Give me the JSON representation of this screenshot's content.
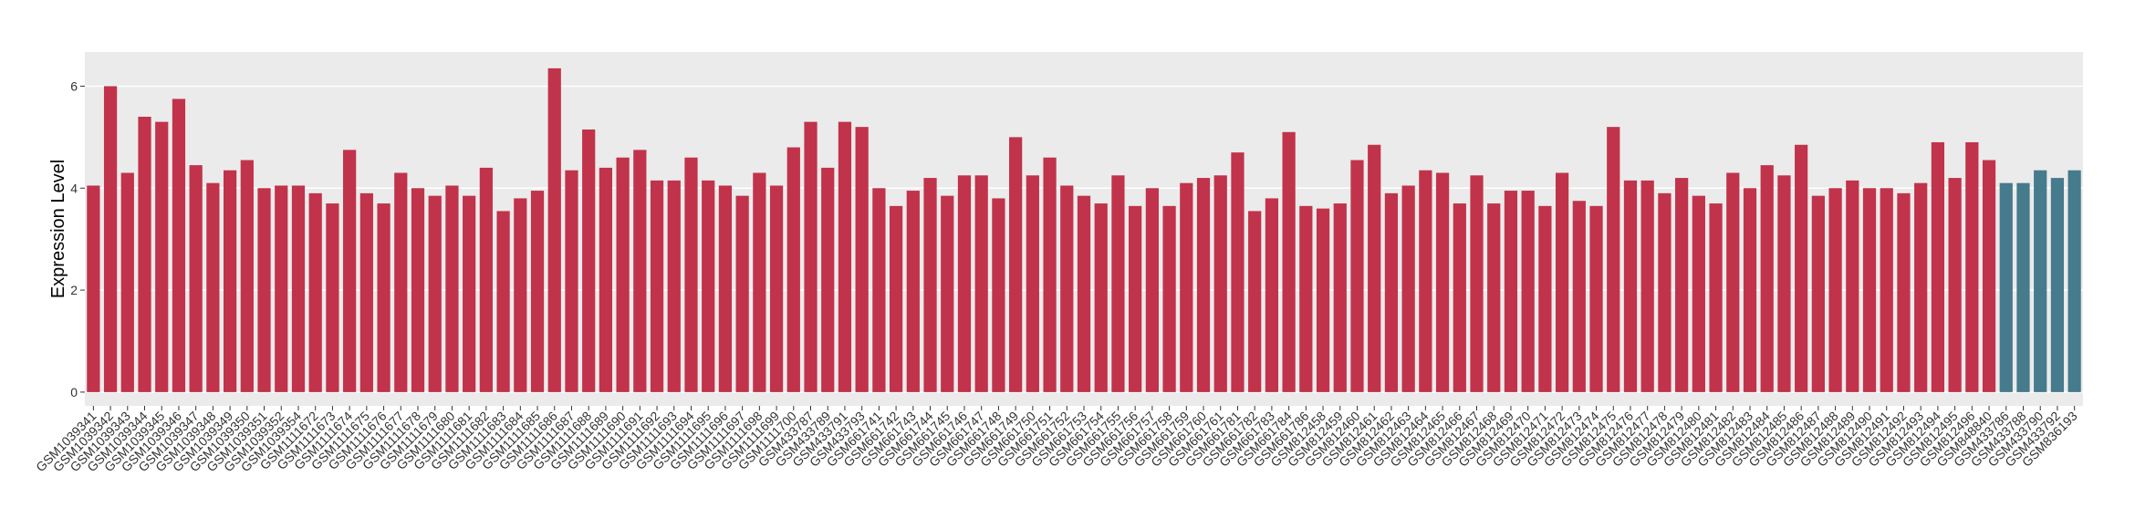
{
  "chart_data": {
    "type": "bar",
    "y_label": "Expression Level",
    "categories": [
      "GSM1039341",
      "GSM1039342",
      "GSM1039343",
      "GSM1039344",
      "GSM1039345",
      "GSM1039346",
      "GSM1039347",
      "GSM1039348",
      "GSM1039349",
      "GSM1039350",
      "GSM1039351",
      "GSM1039352",
      "GSM1039354",
      "GSM1111672",
      "GSM1111673",
      "GSM1111674",
      "GSM1111675",
      "GSM1111676",
      "GSM1111677",
      "GSM1111678",
      "GSM1111679",
      "GSM1111680",
      "GSM1111681",
      "GSM1111682",
      "GSM1111683",
      "GSM1111684",
      "GSM1111685",
      "GSM1111686",
      "GSM1111687",
      "GSM1111688",
      "GSM1111689",
      "GSM1111690",
      "GSM1111691",
      "GSM1111692",
      "GSM1111693",
      "GSM1111694",
      "GSM1111695",
      "GSM1111696",
      "GSM1111697",
      "GSM1111698",
      "GSM1111699",
      "GSM1111700",
      "GSM433787",
      "GSM433789",
      "GSM433791",
      "GSM433793",
      "GSM661741",
      "GSM661742",
      "GSM661743",
      "GSM661744",
      "GSM661745",
      "GSM661746",
      "GSM661747",
      "GSM661748",
      "GSM661749",
      "GSM661750",
      "GSM661751",
      "GSM661752",
      "GSM661753",
      "GSM661754",
      "GSM661755",
      "GSM661756",
      "GSM661757",
      "GSM661758",
      "GSM661759",
      "GSM661760",
      "GSM661761",
      "GSM661781",
      "GSM661782",
      "GSM661783",
      "GSM661784",
      "GSM661786",
      "GSM812458",
      "GSM812459",
      "GSM812460",
      "GSM812461",
      "GSM812462",
      "GSM812463",
      "GSM812464",
      "GSM812465",
      "GSM812466",
      "GSM812467",
      "GSM812468",
      "GSM812469",
      "GSM812470",
      "GSM812471",
      "GSM812472",
      "GSM812473",
      "GSM812474",
      "GSM812475",
      "GSM812476",
      "GSM812477",
      "GSM812478",
      "GSM812479",
      "GSM812480",
      "GSM812481",
      "GSM812482",
      "GSM812483",
      "GSM812484",
      "GSM812485",
      "GSM812486",
      "GSM812487",
      "GSM812488",
      "GSM812489",
      "GSM812490",
      "GSM812491",
      "GSM812492",
      "GSM812493",
      "GSM812494",
      "GSM812495",
      "GSM812496",
      "GSM848840",
      "GSM433786",
      "GSM433788",
      "GSM433790",
      "GSM433792",
      "GSM836193"
    ],
    "values": [
      4.05,
      6.0,
      4.3,
      5.4,
      5.3,
      5.75,
      4.45,
      4.1,
      4.35,
      4.55,
      4.0,
      4.05,
      4.05,
      3.9,
      3.7,
      4.75,
      3.9,
      3.7,
      4.3,
      4.0,
      3.85,
      4.05,
      3.85,
      4.4,
      3.55,
      3.8,
      3.95,
      6.35,
      4.35,
      5.15,
      4.4,
      4.6,
      4.75,
      4.15,
      4.15,
      4.6,
      4.15,
      4.05,
      3.85,
      4.3,
      4.05,
      4.8,
      5.3,
      4.4,
      5.3,
      5.2,
      4.0,
      3.65,
      3.95,
      4.2,
      3.85,
      4.25,
      4.25,
      3.8,
      5.0,
      4.25,
      4.6,
      4.05,
      3.85,
      3.7,
      4.25,
      3.65,
      4.0,
      3.65,
      4.1,
      4.2,
      4.25,
      4.7,
      3.55,
      3.8,
      5.1,
      3.65,
      3.6,
      3.7,
      4.55,
      4.85,
      3.9,
      4.05,
      4.35,
      4.3,
      3.7,
      4.25,
      3.7,
      3.95,
      3.95,
      3.65,
      4.3,
      3.75,
      3.65,
      5.2,
      4.15,
      4.15,
      3.9,
      4.2,
      3.85,
      3.7,
      4.3,
      4.0,
      4.45,
      4.25,
      4.85,
      3.85,
      4.0,
      4.15,
      4.0,
      4.0,
      3.9,
      4.1,
      4.9,
      4.2,
      4.9,
      4.55,
      4.1,
      4.1,
      4.35,
      4.2,
      4.35
    ],
    "colors": [
      "#c1334a",
      "#c1334a",
      "#c1334a",
      "#c1334a",
      "#c1334a",
      "#c1334a",
      "#c1334a",
      "#c1334a",
      "#c1334a",
      "#c1334a",
      "#c1334a",
      "#c1334a",
      "#c1334a",
      "#c1334a",
      "#c1334a",
      "#c1334a",
      "#c1334a",
      "#c1334a",
      "#c1334a",
      "#c1334a",
      "#c1334a",
      "#c1334a",
      "#c1334a",
      "#c1334a",
      "#c1334a",
      "#c1334a",
      "#c1334a",
      "#c1334a",
      "#c1334a",
      "#c1334a",
      "#c1334a",
      "#c1334a",
      "#c1334a",
      "#c1334a",
      "#c1334a",
      "#c1334a",
      "#c1334a",
      "#c1334a",
      "#c1334a",
      "#c1334a",
      "#c1334a",
      "#c1334a",
      "#c1334a",
      "#c1334a",
      "#c1334a",
      "#c1334a",
      "#c1334a",
      "#c1334a",
      "#c1334a",
      "#c1334a",
      "#c1334a",
      "#c1334a",
      "#c1334a",
      "#c1334a",
      "#c1334a",
      "#c1334a",
      "#c1334a",
      "#c1334a",
      "#c1334a",
      "#c1334a",
      "#c1334a",
      "#c1334a",
      "#c1334a",
      "#c1334a",
      "#c1334a",
      "#c1334a",
      "#c1334a",
      "#c1334a",
      "#c1334a",
      "#c1334a",
      "#c1334a",
      "#c1334a",
      "#c1334a",
      "#c1334a",
      "#c1334a",
      "#c1334a",
      "#c1334a",
      "#c1334a",
      "#c1334a",
      "#c1334a",
      "#c1334a",
      "#c1334a",
      "#c1334a",
      "#c1334a",
      "#c1334a",
      "#c1334a",
      "#c1334a",
      "#c1334a",
      "#c1334a",
      "#c1334a",
      "#c1334a",
      "#c1334a",
      "#c1334a",
      "#c1334a",
      "#c1334a",
      "#c1334a",
      "#c1334a",
      "#c1334a",
      "#c1334a",
      "#c1334a",
      "#c1334a",
      "#c1334a",
      "#c1334a",
      "#c1334a",
      "#c1334a",
      "#c1334a",
      "#c1334a",
      "#c1334a",
      "#c1334a",
      "#c1334a",
      "#c1334a",
      "#c1334a",
      "#457b8c",
      "#457b8c",
      "#457b8c",
      "#457b8c",
      "#457b8c"
    ],
    "ylim": [
      -0.27,
      6.67
    ],
    "yticks": [
      0,
      2,
      4,
      6
    ],
    "grid": true
  }
}
